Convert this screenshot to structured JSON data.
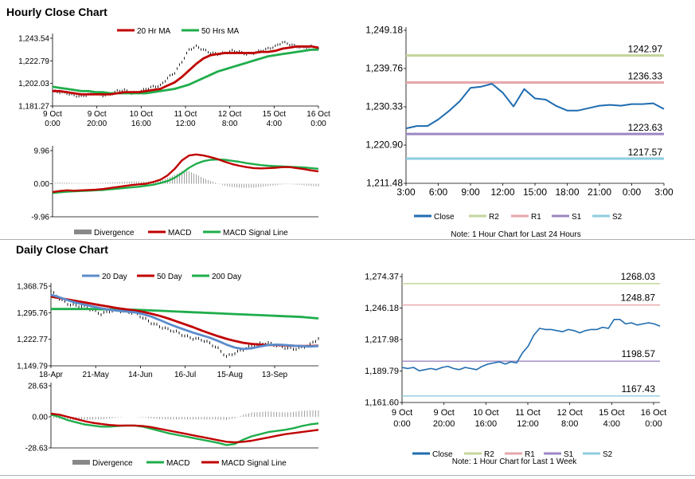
{
  "sections": {
    "hourly_title": "Hourly Close Chart",
    "daily_title": "Daily Close Chart"
  },
  "colors": {
    "ma_short": "#c00000",
    "ma_long": "#1fad4b",
    "ma_20day": "#5b8ccc",
    "close": "#1f6cb0",
    "r2": "#c3d69b",
    "r1": "#e6a7ab",
    "s1": "#9c87c2",
    "s2": "#8ecddf",
    "divergence": "#888888",
    "grid": "#d0d0d0"
  },
  "chart_data": [
    {
      "id": "hourly_price",
      "type": "line",
      "title": "Hourly Close Chart",
      "legend": [
        "20 Hr MA",
        "50 Hrs MA"
      ],
      "y_ticks": [
        "1,243.54",
        "1,222.79",
        "1,202.03",
        "1,181.27"
      ],
      "ylim": [
        1181.27,
        1243.54
      ],
      "x_ticks": [
        [
          "9 Oct",
          "0:00"
        ],
        [
          "9 Oct",
          "20:00"
        ],
        [
          "10 Oct",
          "16:00"
        ],
        [
          "11 Oct",
          "12:00"
        ],
        [
          "12 Oct",
          "8:00"
        ],
        [
          "15 Oct",
          "4:00"
        ],
        [
          "16 Oct",
          "0:00"
        ]
      ],
      "series": [
        {
          "name": "Price",
          "values": [
            1195,
            1194,
            1193,
            1191,
            1190,
            1192,
            1193,
            1191,
            1192,
            1195,
            1196,
            1193,
            1194,
            1197,
            1199,
            1200,
            1207,
            1212,
            1222,
            1233,
            1236,
            1233,
            1230,
            1229,
            1230,
            1232,
            1231,
            1229,
            1230,
            1232,
            1234,
            1236,
            1240,
            1238,
            1236,
            1235,
            1236,
            1234
          ]
        },
        {
          "name": "20 Hr MA",
          "values": [
            1195,
            1195,
            1194,
            1193,
            1192,
            1192,
            1192,
            1192,
            1192,
            1193,
            1194,
            1194,
            1194,
            1195,
            1196,
            1197,
            1200,
            1203,
            1208,
            1214,
            1220,
            1225,
            1228,
            1229,
            1230,
            1230,
            1230,
            1230,
            1230,
            1231,
            1231,
            1232,
            1234,
            1235,
            1236,
            1236,
            1236,
            1235
          ]
        },
        {
          "name": "50 Hrs MA",
          "values": [
            1199,
            1198,
            1197,
            1196,
            1195,
            1195,
            1194,
            1194,
            1193,
            1193,
            1193,
            1193,
            1193,
            1193,
            1194,
            1195,
            1196,
            1197,
            1199,
            1201,
            1204,
            1207,
            1210,
            1213,
            1215,
            1217,
            1219,
            1221,
            1223,
            1225,
            1227,
            1228,
            1229,
            1230,
            1231,
            1232,
            1233,
            1233
          ]
        }
      ]
    },
    {
      "id": "hourly_macd",
      "type": "line",
      "legend": [
        "Divergence",
        "MACD",
        "MACD Signal Line"
      ],
      "y_ticks": [
        "9.96",
        "0.00",
        "-9.96"
      ],
      "ylim": [
        -9.96,
        9.96
      ],
      "series": [
        {
          "name": "MACD",
          "values": [
            -2.5,
            -2.2,
            -2.0,
            -2.1,
            -2.0,
            -1.9,
            -1.8,
            -1.6,
            -1.3,
            -1.0,
            -0.7,
            -0.4,
            -0.2,
            0.0,
            0.5,
            1.2,
            2.5,
            4.5,
            7.0,
            8.5,
            8.8,
            8.5,
            8.0,
            7.4,
            6.6,
            5.9,
            5.4,
            5.0,
            4.7,
            4.6,
            4.7,
            4.8,
            5.0,
            5.0,
            4.7,
            4.4,
            4.0,
            3.7
          ]
        },
        {
          "name": "MACD Signal Line",
          "values": [
            -2.8,
            -2.6,
            -2.4,
            -2.3,
            -2.2,
            -2.1,
            -2.0,
            -1.9,
            -1.7,
            -1.5,
            -1.3,
            -1.1,
            -0.9,
            -0.6,
            -0.3,
            0.2,
            0.8,
            1.8,
            3.2,
            4.8,
            6.0,
            6.8,
            7.2,
            7.3,
            7.2,
            6.9,
            6.6,
            6.2,
            5.9,
            5.6,
            5.4,
            5.3,
            5.2,
            5.1,
            5.0,
            4.9,
            4.7,
            4.5
          ]
        }
      ]
    },
    {
      "id": "hourly_24h",
      "type": "line",
      "note": "Note: 1 Hour Chart for Last 24 Hours",
      "legend": [
        "Close",
        "R2",
        "R1",
        "S1",
        "S2"
      ],
      "y_ticks": [
        "1,249.18",
        "1,239.76",
        "1,230.33",
        "1,220.90",
        "1,211.48"
      ],
      "ylim": [
        1211.48,
        1249.18
      ],
      "x_ticks": [
        "3:00",
        "6:00",
        "9:00",
        "12:00",
        "15:00",
        "18:00",
        "21:00",
        "0:00",
        "3:00"
      ],
      "levels": [
        {
          "name": "R2",
          "value": 1242.97,
          "label": "1242.97"
        },
        {
          "name": "R1",
          "value": 1236.33,
          "label": "1236.33"
        },
        {
          "name": "S1",
          "value": 1223.63,
          "label": "1223.63"
        },
        {
          "name": "S2",
          "value": 1217.57,
          "label": "1217.57"
        }
      ],
      "series": [
        {
          "name": "Close",
          "values": [
            1225.0,
            1225.6,
            1225.6,
            1227.2,
            1229.3,
            1231.7,
            1235.0,
            1235.3,
            1236.0,
            1233.8,
            1230.4,
            1234.7,
            1232.4,
            1232.1,
            1230.5,
            1229.4,
            1229.4,
            1230.0,
            1230.6,
            1230.8,
            1230.6,
            1231.0,
            1231.0,
            1231.2,
            1229.8
          ]
        }
      ]
    },
    {
      "id": "daily_price",
      "type": "line",
      "title": "Daily Close Chart",
      "legend": [
        "20 Day",
        "50 Day",
        "200 Day"
      ],
      "y_ticks": [
        "1,368.75",
        "1,295.76",
        "1,222.77",
        "1,149.79"
      ],
      "ylim": [
        1149.79,
        1368.75
      ],
      "x_ticks": [
        "18-Apr",
        "21-May",
        "14-Jun",
        "16-Jul",
        "15-Aug",
        "13-Sep"
      ],
      "series": [
        {
          "name": "Price",
          "values": [
            1355,
            1335,
            1320,
            1315,
            1312,
            1303,
            1292,
            1300,
            1302,
            1298,
            1296,
            1282,
            1268,
            1258,
            1250,
            1243,
            1232,
            1225,
            1222,
            1212,
            1197,
            1175,
            1185,
            1195,
            1205,
            1210,
            1212,
            1206,
            1200,
            1196,
            1200,
            1208,
            1225
          ]
        },
        {
          "name": "20 Day",
          "values": [
            1345,
            1338,
            1330,
            1323,
            1318,
            1313,
            1308,
            1304,
            1301,
            1299,
            1297,
            1292,
            1285,
            1276,
            1266,
            1257,
            1249,
            1241,
            1234,
            1227,
            1218,
            1208,
            1200,
            1196,
            1198,
            1203,
            1207,
            1208,
            1207,
            1205,
            1204,
            1203,
            1204
          ]
        },
        {
          "name": "50 Day",
          "values": [
            1340,
            1336,
            1332,
            1328,
            1324,
            1320,
            1316,
            1312,
            1308,
            1305,
            1302,
            1298,
            1293,
            1287,
            1280,
            1272,
            1264,
            1256,
            1247,
            1239,
            1231,
            1224,
            1218,
            1213,
            1210,
            1208,
            1207,
            1207,
            1206,
            1205,
            1204,
            1204,
            1205
          ]
        },
        {
          "name": "200 Day",
          "values": [
            1306,
            1306,
            1306,
            1306,
            1306,
            1306,
            1305,
            1305,
            1305,
            1304,
            1304,
            1303,
            1302,
            1301,
            1300,
            1299,
            1298,
            1297,
            1296,
            1295,
            1294,
            1293,
            1292,
            1291,
            1290,
            1289,
            1288,
            1287,
            1286,
            1285,
            1284,
            1282,
            1280
          ]
        }
      ]
    },
    {
      "id": "daily_macd",
      "type": "line",
      "legend": [
        "Divergence",
        "MACD",
        "MACD Signal Line"
      ],
      "y_ticks": [
        "28.63",
        "0.00",
        "-28.63"
      ],
      "ylim": [
        -28.63,
        28.63
      ],
      "series": [
        {
          "name": "MACD",
          "values": [
            2.0,
            0.0,
            -3.0,
            -5.0,
            -7.0,
            -8.0,
            -9.0,
            -9.0,
            -8.5,
            -8.0,
            -8.0,
            -9.0,
            -11.0,
            -13.0,
            -15.0,
            -16.5,
            -18.0,
            -19.5,
            -21.0,
            -22.5,
            -24.0,
            -26.0,
            -25.0,
            -21.0,
            -18.0,
            -16.0,
            -14.0,
            -13.0,
            -12.0,
            -10.5,
            -8.5,
            -7.0,
            -6.0
          ]
        },
        {
          "name": "MACD Signal Line",
          "values": [
            3.0,
            2.0,
            0.0,
            -2.0,
            -4.0,
            -5.5,
            -6.5,
            -7.5,
            -8.0,
            -8.0,
            -8.0,
            -8.5,
            -9.5,
            -11.0,
            -12.5,
            -14.0,
            -15.5,
            -17.0,
            -18.5,
            -20.0,
            -21.5,
            -23.0,
            -23.5,
            -23.0,
            -22.0,
            -20.5,
            -19.0,
            -17.5,
            -16.0,
            -15.0,
            -14.0,
            -13.0,
            -12.0
          ]
        }
      ]
    },
    {
      "id": "daily_1week",
      "type": "line",
      "note": "Note: 1 Hour Chart for Last 1 Week",
      "legend": [
        "Close",
        "R2",
        "R1",
        "S1",
        "S2"
      ],
      "y_ticks": [
        "1,274.37",
        "1,246.18",
        "1,217.98",
        "1,189.79",
        "1,161.60"
      ],
      "ylim": [
        1161.6,
        1274.37
      ],
      "x_ticks": [
        [
          "9 Oct",
          "0:00"
        ],
        [
          "9 Oct",
          "20:00"
        ],
        [
          "10 Oct",
          "16:00"
        ],
        [
          "11 Oct",
          "12:00"
        ],
        [
          "12 Oct",
          "8:00"
        ],
        [
          "15 Oct",
          "4:00"
        ],
        [
          "16 Oct",
          "0:00"
        ]
      ],
      "levels": [
        {
          "name": "R2",
          "value": 1268.03,
          "label": "1268.03"
        },
        {
          "name": "R1",
          "value": 1248.87,
          "label": "1248.87"
        },
        {
          "name": "S1",
          "value": 1198.57,
          "label": "1198.57"
        },
        {
          "name": "S2",
          "value": 1167.43,
          "label": "1167.43"
        }
      ],
      "series": [
        {
          "name": "Close",
          "values": [
            1193,
            1192,
            1193,
            1190,
            1191,
            1192,
            1191,
            1193,
            1194,
            1192,
            1191,
            1193,
            1192,
            1191,
            1194,
            1196,
            1197,
            1198,
            1196,
            1198,
            1197,
            1206,
            1212,
            1222,
            1228,
            1227,
            1227,
            1226,
            1225,
            1227,
            1226,
            1224,
            1226,
            1227,
            1227,
            1229,
            1228,
            1236,
            1236,
            1232,
            1233,
            1231,
            1232,
            1233,
            1232,
            1230
          ]
        }
      ]
    }
  ]
}
